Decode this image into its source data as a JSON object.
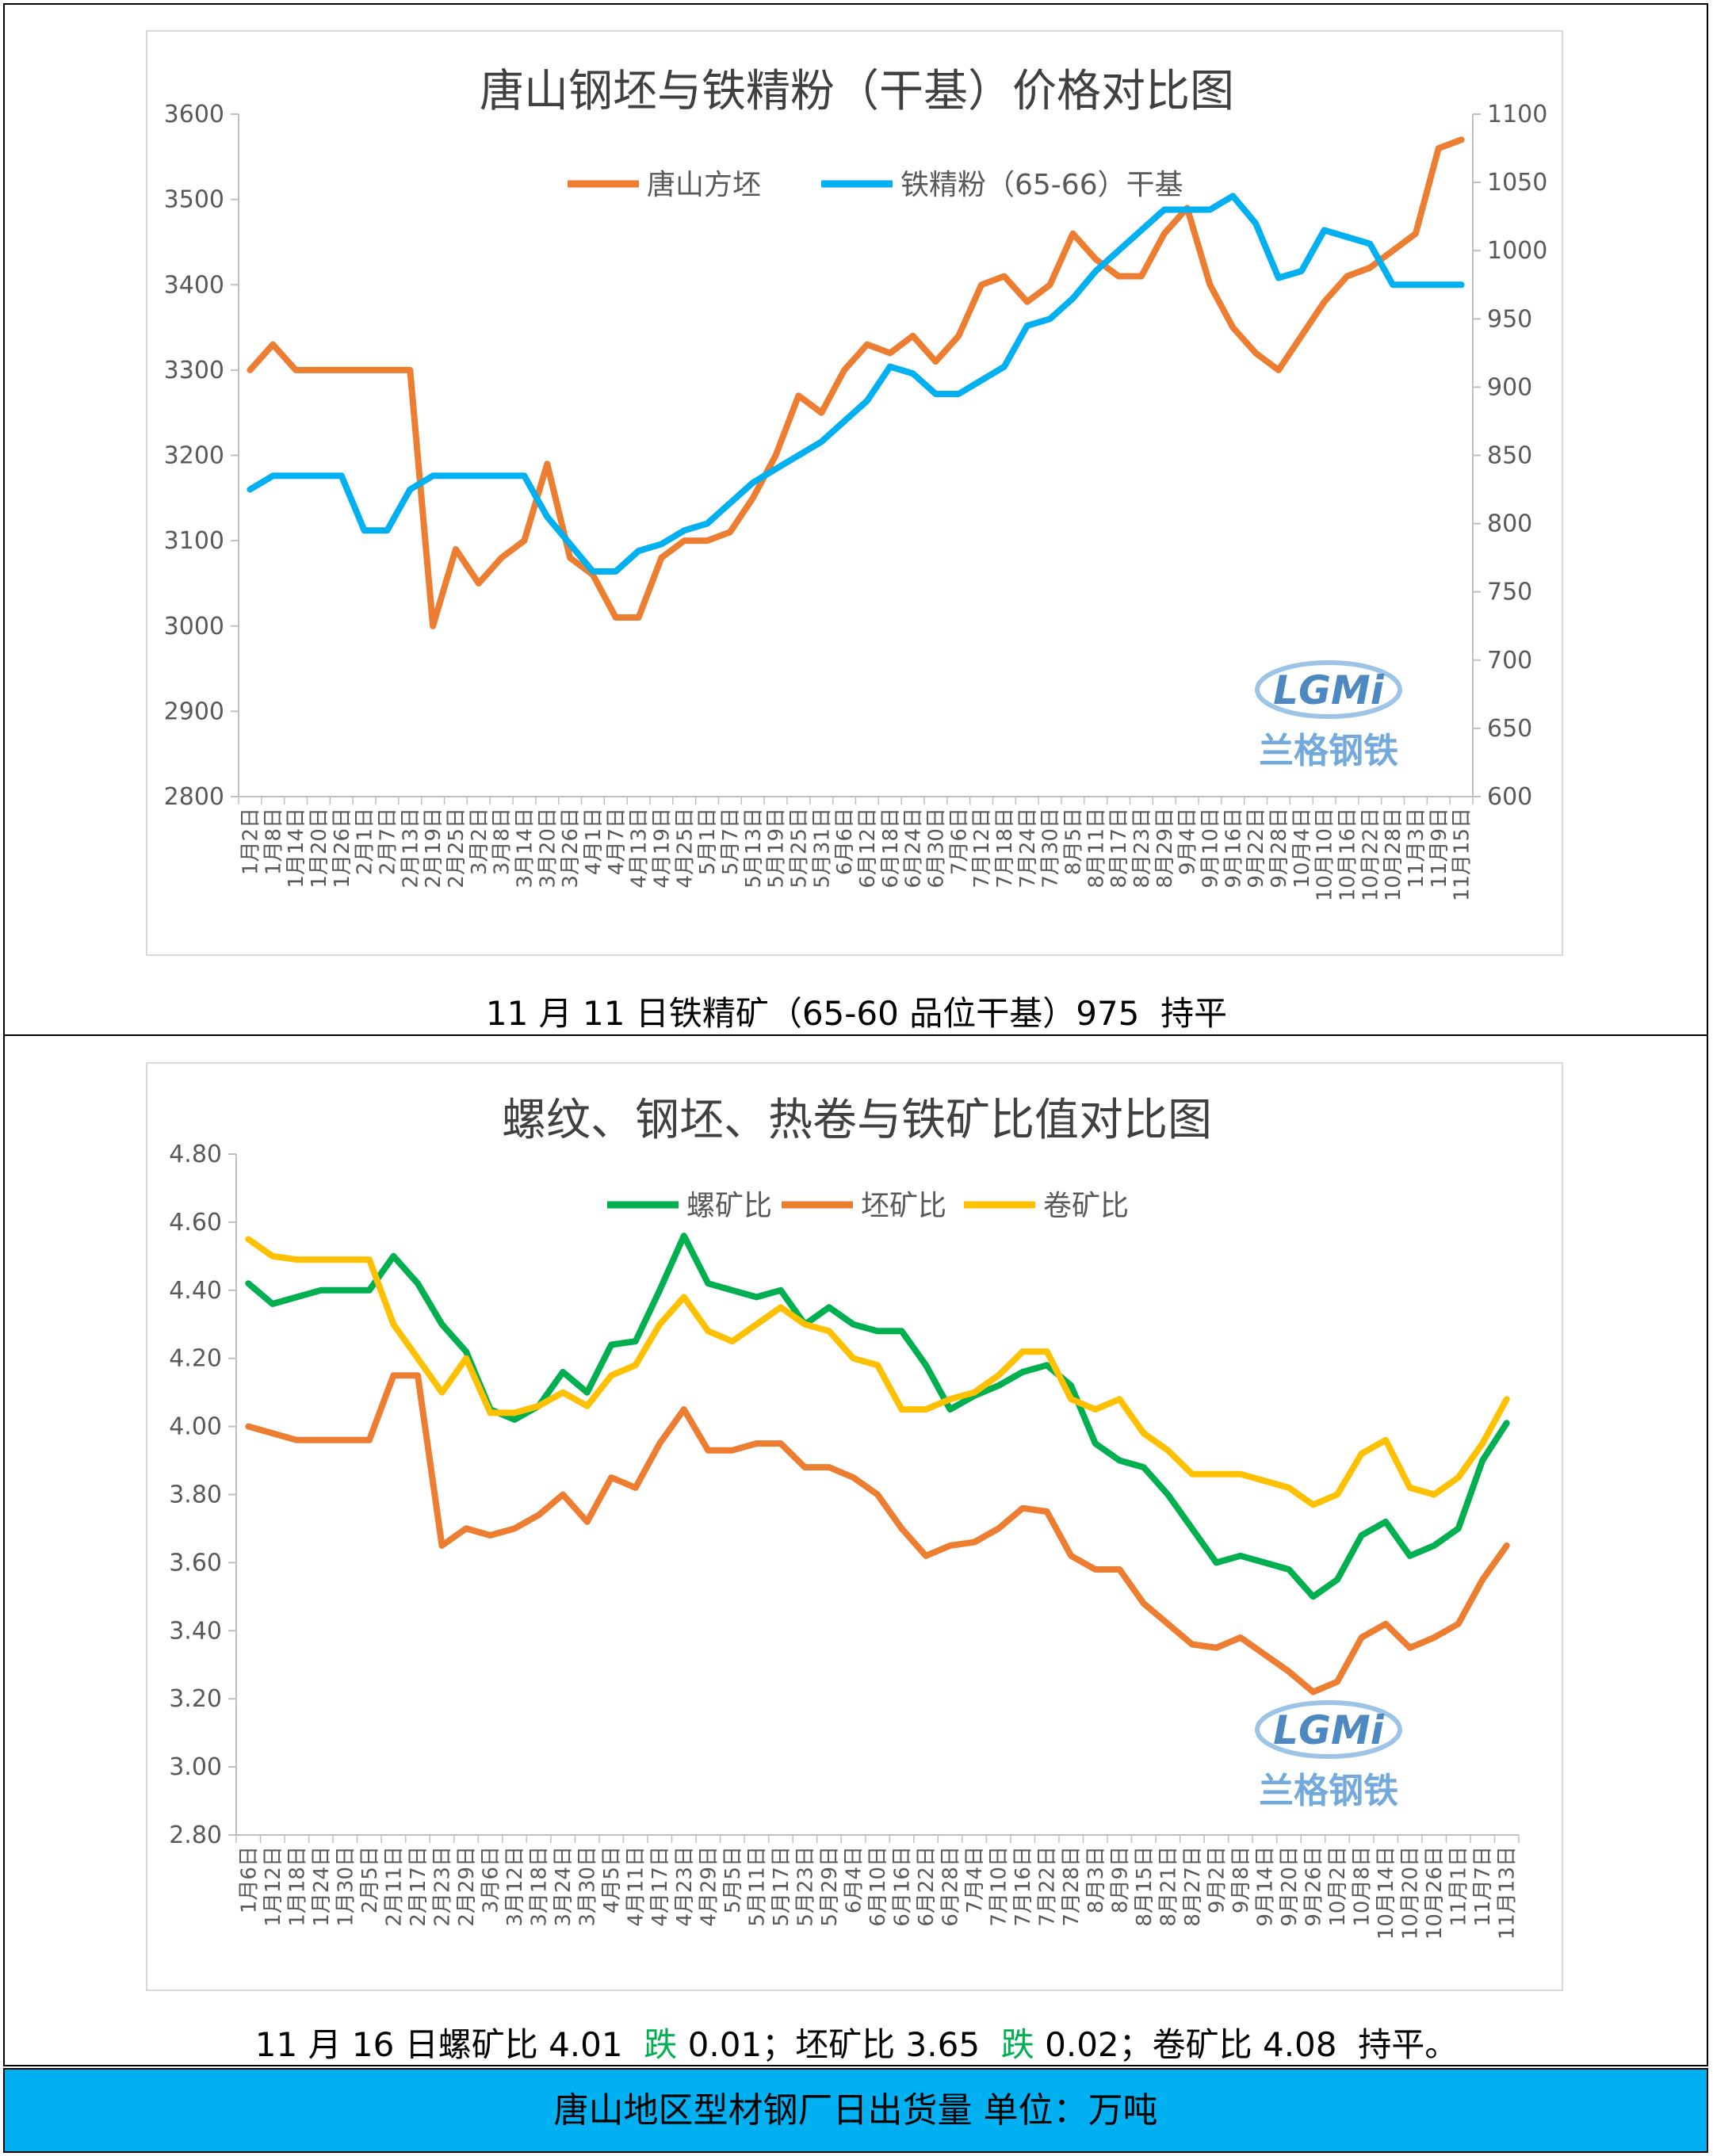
{
  "chart_data": [
    {
      "type": "line",
      "title": "唐山钢坯与铁精粉（干基）价格对比图",
      "ylim": [
        2800,
        3600
      ],
      "y2lim": [
        600,
        1100
      ],
      "yticks": [
        "2800",
        "2900",
        "3000",
        "3100",
        "3200",
        "3300",
        "3400",
        "3500",
        "3600"
      ],
      "y2ticks": [
        "600",
        "650",
        "700",
        "750",
        "800",
        "850",
        "900",
        "950",
        "1000",
        "1050",
        "1100"
      ],
      "categories": [
        "1月2日",
        "1月8日",
        "1月14日",
        "1月20日",
        "1月26日",
        "2月1日",
        "2月7日",
        "2月13日",
        "2月19日",
        "2月25日",
        "3月2日",
        "3月8日",
        "3月14日",
        "3月20日",
        "3月26日",
        "4月1日",
        "4月7日",
        "4月13日",
        "4月19日",
        "4月25日",
        "5月1日",
        "5月7日",
        "5月13日",
        "5月19日",
        "5月25日",
        "5月31日",
        "6月6日",
        "6月12日",
        "6月18日",
        "6月24日",
        "6月30日",
        "7月6日",
        "7月12日",
        "7月18日",
        "7月24日",
        "7月30日",
        "8月5日",
        "8月11日",
        "8月17日",
        "8月23日",
        "8月29日",
        "9月4日",
        "9月10日",
        "9月16日",
        "9月22日",
        "9月28日",
        "10月4日",
        "10月10日",
        "10月16日",
        "10月22日",
        "10月28日",
        "11月3日",
        "11月9日",
        "11月15日"
      ],
      "legend_position": "top",
      "series": [
        {
          "name": "唐山方坯",
          "axis": "left",
          "color": "#ed7d31",
          "values": [
            3300,
            3330,
            3300,
            3300,
            3300,
            3300,
            3300,
            3300,
            3000,
            3090,
            3050,
            3080,
            3100,
            3190,
            3080,
            3060,
            3010,
            3010,
            3080,
            3100,
            3100,
            3110,
            3150,
            3200,
            3270,
            3250,
            3300,
            3330,
            3320,
            3340,
            3310,
            3340,
            3400,
            3410,
            3380,
            3400,
            3460,
            3430,
            3410,
            3410,
            3460,
            3490,
            3400,
            3350,
            3320,
            3300,
            3340,
            3380,
            3410,
            3420,
            3440,
            3460,
            3560,
            3570
          ]
        },
        {
          "name": "铁精粉（65-66）干基",
          "axis": "right",
          "color": "#00b0f0",
          "values": [
            825,
            835,
            835,
            835,
            835,
            795,
            795,
            825,
            835,
            835,
            835,
            835,
            835,
            805,
            785,
            765,
            765,
            780,
            785,
            795,
            800,
            815,
            830,
            840,
            850,
            860,
            875,
            890,
            915,
            910,
            895,
            895,
            905,
            915,
            945,
            950,
            965,
            985,
            1000,
            1015,
            1030,
            1030,
            1030,
            1040,
            1020,
            980,
            985,
            1015,
            1010,
            1005,
            975,
            975,
            975,
            975
          ]
        }
      ]
    },
    {
      "type": "line",
      "title": "螺纹、钢坯、热卷与铁矿比值对比图",
      "ylim": [
        2.8,
        4.8
      ],
      "yticks": [
        "2.80",
        "3.00",
        "3.20",
        "3.40",
        "3.60",
        "3.80",
        "4.00",
        "4.20",
        "4.40",
        "4.60",
        "4.80"
      ],
      "categories": [
        "1月6日",
        "1月12日",
        "1月18日",
        "1月24日",
        "1月30日",
        "2月5日",
        "2月11日",
        "2月17日",
        "2月23日",
        "2月29日",
        "3月6日",
        "3月12日",
        "3月18日",
        "3月24日",
        "3月30日",
        "4月5日",
        "4月11日",
        "4月17日",
        "4月23日",
        "4月29日",
        "5月5日",
        "5月11日",
        "5月17日",
        "5月23日",
        "5月29日",
        "6月4日",
        "6月10日",
        "6月16日",
        "6月22日",
        "6月28日",
        "7月4日",
        "7月10日",
        "7月16日",
        "7月22日",
        "7月28日",
        "8月3日",
        "8月9日",
        "8月15日",
        "8月21日",
        "8月27日",
        "9月2日",
        "9月8日",
        "9月14日",
        "9月20日",
        "9月26日",
        "10月2日",
        "10月8日",
        "10月14日",
        "10月20日",
        "10月26日",
        "11月1日",
        "11月7日",
        "11月13日"
      ],
      "legend_position": "top",
      "series": [
        {
          "name": "螺矿比",
          "color": "#00b050",
          "values": [
            4.42,
            4.36,
            4.38,
            4.4,
            4.4,
            4.4,
            4.5,
            4.42,
            4.3,
            4.22,
            4.05,
            4.02,
            4.06,
            4.16,
            4.1,
            4.24,
            4.25,
            4.4,
            4.56,
            4.42,
            4.4,
            4.38,
            4.4,
            4.3,
            4.35,
            4.3,
            4.28,
            4.28,
            4.18,
            4.05,
            4.09,
            4.12,
            4.16,
            4.18,
            4.12,
            3.95,
            3.9,
            3.88,
            3.8,
            3.7,
            3.6,
            3.62,
            3.6,
            3.58,
            3.5,
            3.55,
            3.68,
            3.72,
            3.62,
            3.65,
            3.7,
            3.9,
            4.01
          ]
        },
        {
          "name": "坯矿比",
          "color": "#ed7d31",
          "values": [
            4.0,
            3.98,
            3.96,
            3.96,
            3.96,
            3.96,
            4.15,
            4.15,
            3.65,
            3.7,
            3.68,
            3.7,
            3.74,
            3.8,
            3.72,
            3.85,
            3.82,
            3.95,
            4.05,
            3.93,
            3.93,
            3.95,
            3.95,
            3.88,
            3.88,
            3.85,
            3.8,
            3.7,
            3.62,
            3.65,
            3.66,
            3.7,
            3.76,
            3.75,
            3.62,
            3.58,
            3.58,
            3.48,
            3.42,
            3.36,
            3.35,
            3.38,
            3.33,
            3.28,
            3.22,
            3.25,
            3.38,
            3.42,
            3.35,
            3.38,
            3.42,
            3.55,
            3.65
          ]
        },
        {
          "name": "卷矿比",
          "color": "#ffc000",
          "values": [
            4.55,
            4.5,
            4.49,
            4.49,
            4.49,
            4.49,
            4.3,
            4.2,
            4.1,
            4.2,
            4.04,
            4.04,
            4.06,
            4.1,
            4.06,
            4.15,
            4.18,
            4.3,
            4.38,
            4.28,
            4.25,
            4.3,
            4.35,
            4.3,
            4.28,
            4.2,
            4.18,
            4.05,
            4.05,
            4.08,
            4.1,
            4.15,
            4.22,
            4.22,
            4.08,
            4.05,
            4.08,
            3.98,
            3.93,
            3.86,
            3.86,
            3.86,
            3.84,
            3.82,
            3.77,
            3.8,
            3.92,
            3.96,
            3.82,
            3.8,
            3.85,
            3.95,
            4.08
          ]
        }
      ]
    }
  ],
  "watermark": {
    "logo_text": "LGMi",
    "sub_text": "兰格钢铁"
  },
  "captions": {
    "caption1": "11 月 11 日铁精矿（65-60 品位干基）975  持平",
    "caption2_a": "11 月 16 日螺矿比 4.01  ",
    "caption2_b": "跌",
    "caption2_c": " 0.01；坯矿比 3.65  ",
    "caption2_d": "跌",
    "caption2_e": " 0.02；卷矿比 4.08  持平。"
  },
  "banner": {
    "text": "唐山地区型材钢厂日出货量  单位：万吨",
    "color": "#00b0f0"
  }
}
